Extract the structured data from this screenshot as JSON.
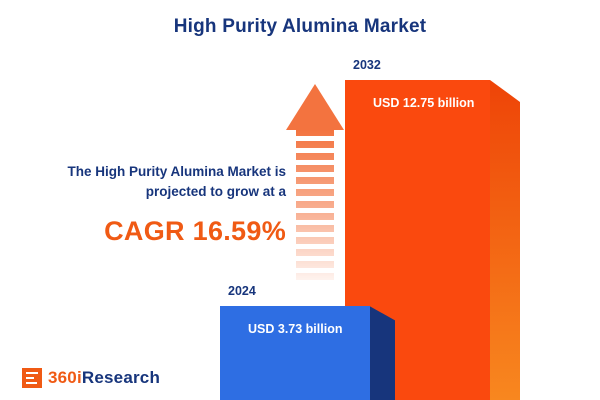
{
  "title": "High Purity Alumina Market",
  "annotation": {
    "line1": "The High Purity Alumina Market is",
    "line2": "projected to grow at a",
    "cagr_label": "CAGR 16.59%"
  },
  "bars": {
    "blue": {
      "year": "2024",
      "value_label": "USD 3.73 billion"
    },
    "orange": {
      "year": "2032",
      "value_label": "USD 12.75 billion"
    }
  },
  "logo": {
    "part1": "360i",
    "part2": "Research"
  },
  "colors": {
    "navy": "#17357c",
    "orange_accent": "#f05a14",
    "bar_orange_front": "#fa490e",
    "bar_orange_side": "#f8871f",
    "bar_blue_front": "#2e6ee3",
    "bar_blue_side": "#17357c",
    "arrow_orange": "#f3733f",
    "background": "#ffffff"
  },
  "chart_data": {
    "type": "bar",
    "title": "High Purity Alumina Market",
    "categories": [
      "2024",
      "2032"
    ],
    "values": [
      3.73,
      12.75
    ],
    "unit": "USD billion",
    "data_labels": [
      "USD 3.73 billion",
      "USD 12.75 billion"
    ],
    "annotation": "The High Purity Alumina Market is projected to grow at a CAGR 16.59%",
    "cagr_percent": 16.59,
    "bar_colors": [
      "#2e6ee3",
      "#fa490e"
    ],
    "legend": false,
    "axes_visible": false
  }
}
